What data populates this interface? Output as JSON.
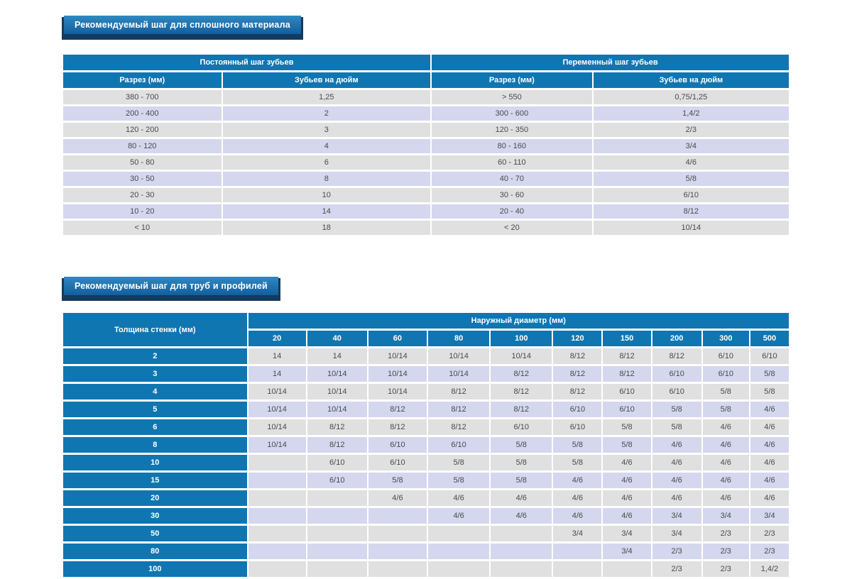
{
  "colors": {
    "header-blue": "#0f76b2",
    "row-grey": "#e0e0e0",
    "row-lavender": "#d5d7ef",
    "title-top": "#2f89c0",
    "title-bottom": "#135e9e",
    "title-shadow": "#133a5f",
    "cell-text": "#4a4a4a"
  },
  "solid_table": {
    "title": "Рекомендуемый шаг для сплошного материала",
    "groups": [
      "Постоянный шаг зубьев",
      "Переменный шаг зубьев"
    ],
    "columns": [
      "Разрез (мм)",
      "Зубьев на дюйм",
      "Разрез (мм)",
      "Зубьев на дюйм"
    ],
    "rows": [
      [
        "380 - 700",
        "1,25",
        "> 550",
        "0,75/1,25"
      ],
      [
        "200 - 400",
        "2",
        "300 - 600",
        "1,4/2"
      ],
      [
        "120 - 200",
        "3",
        "120 - 350",
        "2/3"
      ],
      [
        "80 - 120",
        "4",
        "80 - 160",
        "3/4"
      ],
      [
        "50 - 80",
        "6",
        "60 - 110",
        "4/6"
      ],
      [
        "30 - 50",
        "8",
        "40 - 70",
        "5/8"
      ],
      [
        "20 - 30",
        "10",
        "30 - 60",
        "6/10"
      ],
      [
        "10 - 20",
        "14",
        "20 - 40",
        "8/12"
      ],
      [
        "< 10",
        "18",
        "< 20",
        "10/14"
      ]
    ]
  },
  "pipes_table": {
    "title": "Рекомендуемый шаг для труб и профилей",
    "row_header": "Толщина стенки (мм)",
    "group_header": "Наружный диаметр (мм)",
    "columns": [
      "20",
      "40",
      "60",
      "80",
      "100",
      "120",
      "150",
      "200",
      "300",
      "500"
    ],
    "rows": [
      {
        "label": "2",
        "values": [
          "14",
          "14",
          "10/14",
          "10/14",
          "10/14",
          "8/12",
          "8/12",
          "8/12",
          "6/10",
          "6/10"
        ]
      },
      {
        "label": "3",
        "values": [
          "14",
          "10/14",
          "10/14",
          "10/14",
          "8/12",
          "8/12",
          "8/12",
          "6/10",
          "6/10",
          "5/8"
        ]
      },
      {
        "label": "4",
        "values": [
          "10/14",
          "10/14",
          "10/14",
          "8/12",
          "8/12",
          "8/12",
          "6/10",
          "6/10",
          "5/8",
          "5/8"
        ]
      },
      {
        "label": "5",
        "values": [
          "10/14",
          "10/14",
          "8/12",
          "8/12",
          "8/12",
          "6/10",
          "6/10",
          "5/8",
          "5/8",
          "4/6"
        ]
      },
      {
        "label": "6",
        "values": [
          "10/14",
          "8/12",
          "8/12",
          "8/12",
          "6/10",
          "6/10",
          "5/8",
          "5/8",
          "4/6",
          "4/6"
        ]
      },
      {
        "label": "8",
        "values": [
          "10/14",
          "8/12",
          "6/10",
          "6/10",
          "5/8",
          "5/8",
          "5/8",
          "4/6",
          "4/6",
          "4/6"
        ]
      },
      {
        "label": "10",
        "values": [
          "",
          "6/10",
          "6/10",
          "5/8",
          "5/8",
          "5/8",
          "4/6",
          "4/6",
          "4/6",
          "4/6"
        ]
      },
      {
        "label": "15",
        "values": [
          "",
          "6/10",
          "5/8",
          "5/8",
          "5/8",
          "4/6",
          "4/6",
          "4/6",
          "4/6",
          "4/6"
        ]
      },
      {
        "label": "20",
        "values": [
          "",
          "",
          "4/6",
          "4/6",
          "4/6",
          "4/6",
          "4/6",
          "4/6",
          "4/6",
          "4/6"
        ]
      },
      {
        "label": "30",
        "values": [
          "",
          "",
          "",
          "4/6",
          "4/6",
          "4/6",
          "4/6",
          "3/4",
          "3/4",
          "3/4"
        ]
      },
      {
        "label": "50",
        "values": [
          "",
          "",
          "",
          "",
          "",
          "3/4",
          "3/4",
          "3/4",
          "2/3",
          "2/3"
        ]
      },
      {
        "label": "80",
        "values": [
          "",
          "",
          "",
          "",
          "",
          "",
          "3/4",
          "2/3",
          "2/3",
          "2/3"
        ]
      },
      {
        "label": "100",
        "values": [
          "",
          "",
          "",
          "",
          "",
          "",
          "",
          "2/3",
          "2/3",
          "1,4/2"
        ]
      }
    ]
  }
}
